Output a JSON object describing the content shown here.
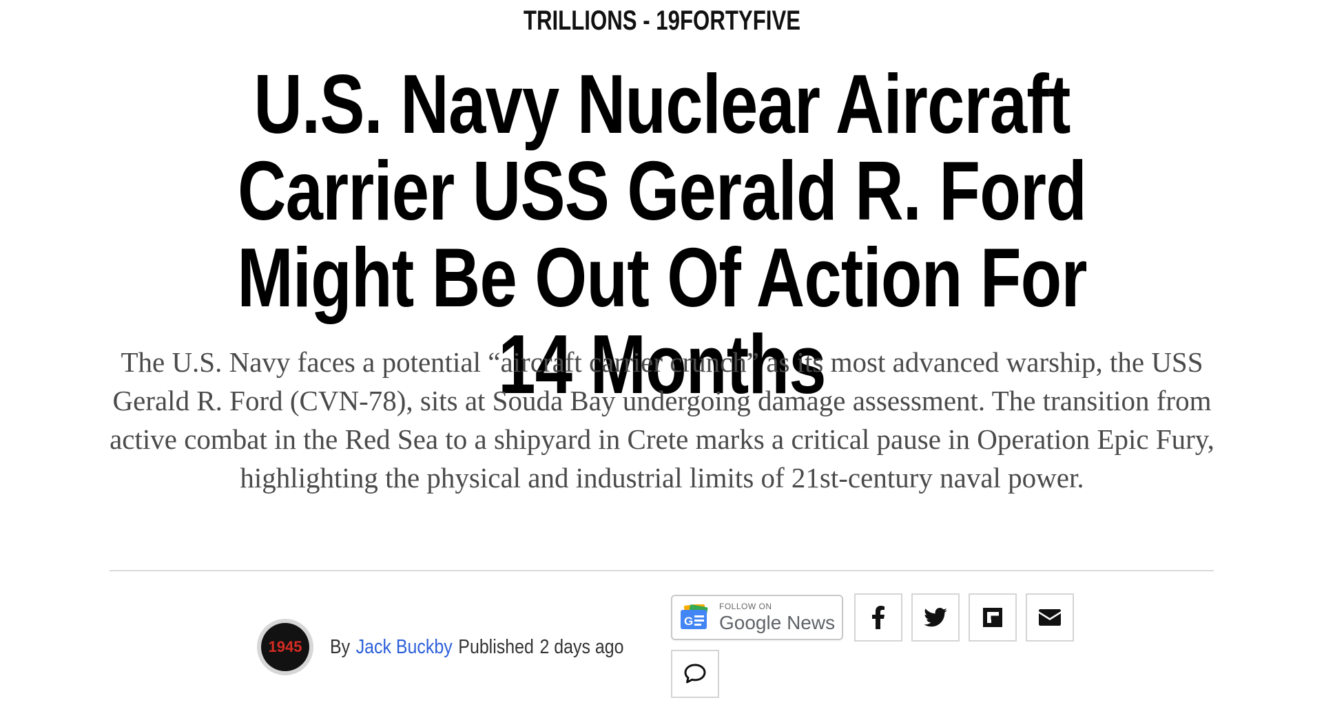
{
  "category": "TRILLIONS - 19FORTYFIVE",
  "headline": "U.S. Navy Nuclear Aircraft Carrier USS Gerald R. Ford Might Be Out Of Action For 14 Months",
  "dek": "The U.S. Navy faces a potential “aircraft carrier crunch” as its most advanced warship, the USS Gerald R. Ford (CVN-78), sits at Souda Bay undergoing damage assessment. The transition from active combat in the Red Sea to a shipyard in Crete marks a critical pause in Operation Epic Fury, highlighting the physical and industrial limits of 21st-century naval power.",
  "byline": {
    "avatar_text": "1945",
    "by_label": "By",
    "author": "Jack Buckby",
    "published_label": "Published",
    "time": "2 days ago"
  },
  "social": {
    "google_news": {
      "small": "FOLLOW ON",
      "big": "Google News"
    },
    "icons": [
      "facebook-icon",
      "twitter-icon",
      "flipboard-icon",
      "email-icon",
      "comment-icon"
    ]
  },
  "colors": {
    "author_link": "#2b5fd9",
    "avatar_bg": "#121212",
    "avatar_text": "#d62b22",
    "dek_text": "#4a4a4a",
    "divider": "#d9d9d9"
  }
}
